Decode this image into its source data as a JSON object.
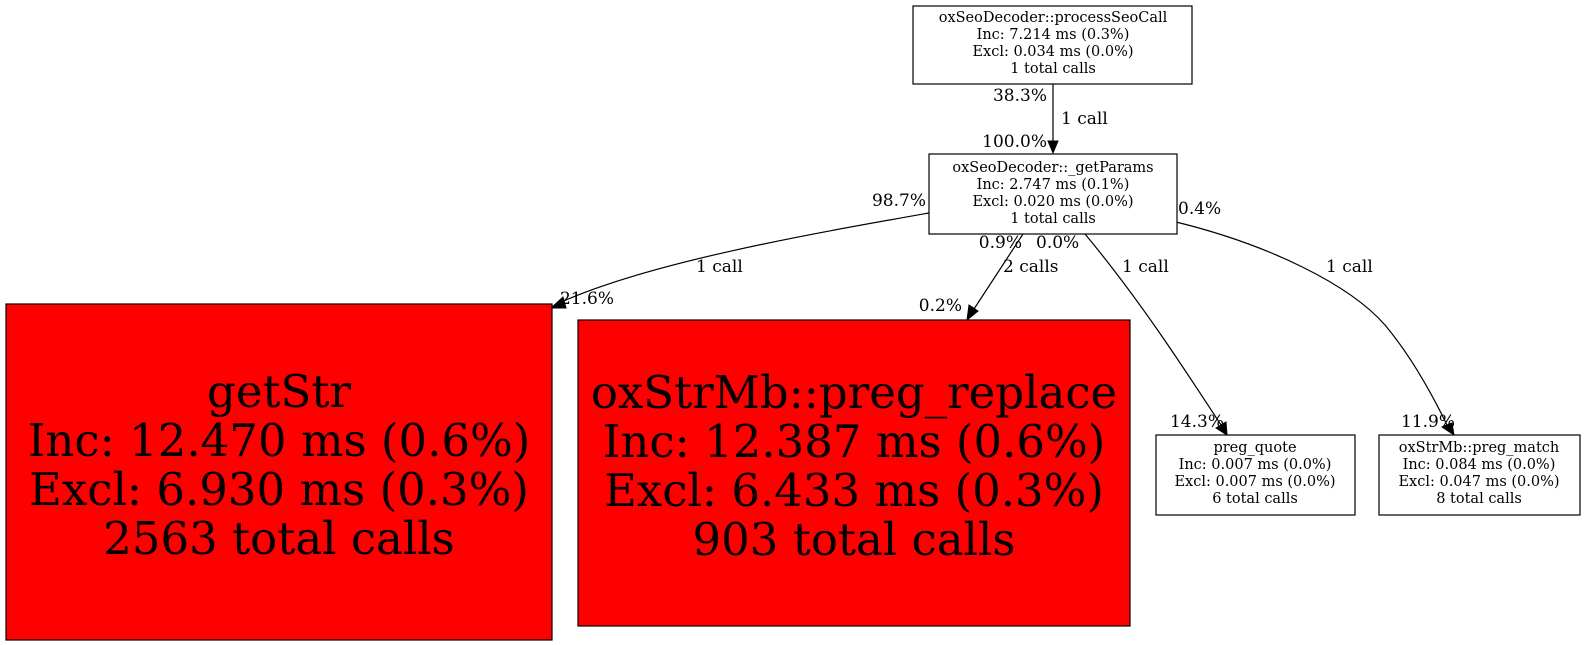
{
  "colors": {
    "hot": "#ff0000",
    "normal": "#ffffff",
    "line": "#000000"
  },
  "nodes": {
    "processSeoCall": {
      "name": "oxSeoDecoder::processSeoCall",
      "inc": "Inc: 7.214 ms (0.3%)",
      "excl": "Excl: 0.034 ms (0.0%)",
      "calls": "1 total calls"
    },
    "getParams": {
      "name": "oxSeoDecoder::_getParams",
      "inc": "Inc: 2.747 ms (0.1%)",
      "excl": "Excl: 0.020 ms (0.0%)",
      "calls": "1 total calls"
    },
    "getStr": {
      "name": "getStr",
      "inc": "Inc: 12.470 ms (0.6%)",
      "excl": "Excl: 6.930 ms (0.3%)",
      "calls": "2563 total calls"
    },
    "pregReplace": {
      "name": "oxStrMb::preg_replace",
      "inc": "Inc: 12.387 ms (0.6%)",
      "excl": "Excl: 6.433 ms (0.3%)",
      "calls": "903 total calls"
    },
    "pregQuote": {
      "name": "preg_quote",
      "inc": "Inc: 0.007 ms (0.0%)",
      "excl": "Excl: 0.007 ms (0.0%)",
      "calls": "6 total calls"
    },
    "pregMatch": {
      "name": "oxStrMb::preg_match",
      "inc": "Inc: 0.084 ms (0.0%)",
      "excl": "Excl: 0.047 ms (0.0%)",
      "calls": "8 total calls"
    }
  },
  "edges": {
    "processSeoCall_getParams": {
      "label": "1 call",
      "tail": "38.3%",
      "head": "100.0%"
    },
    "getParams_getStr": {
      "label": "1 call",
      "tail": "98.7%",
      "head": "21.6%"
    },
    "getParams_pregReplace": {
      "label": "2 calls",
      "tail": "0.9%",
      "head": "0.2%"
    },
    "getParams_pregQuote": {
      "label": "1 call",
      "tail": "0.0%",
      "head": "14.3%"
    },
    "getParams_pregMatch": {
      "label": "1 call",
      "tail": "0.4%",
      "head": "11.9%"
    }
  }
}
